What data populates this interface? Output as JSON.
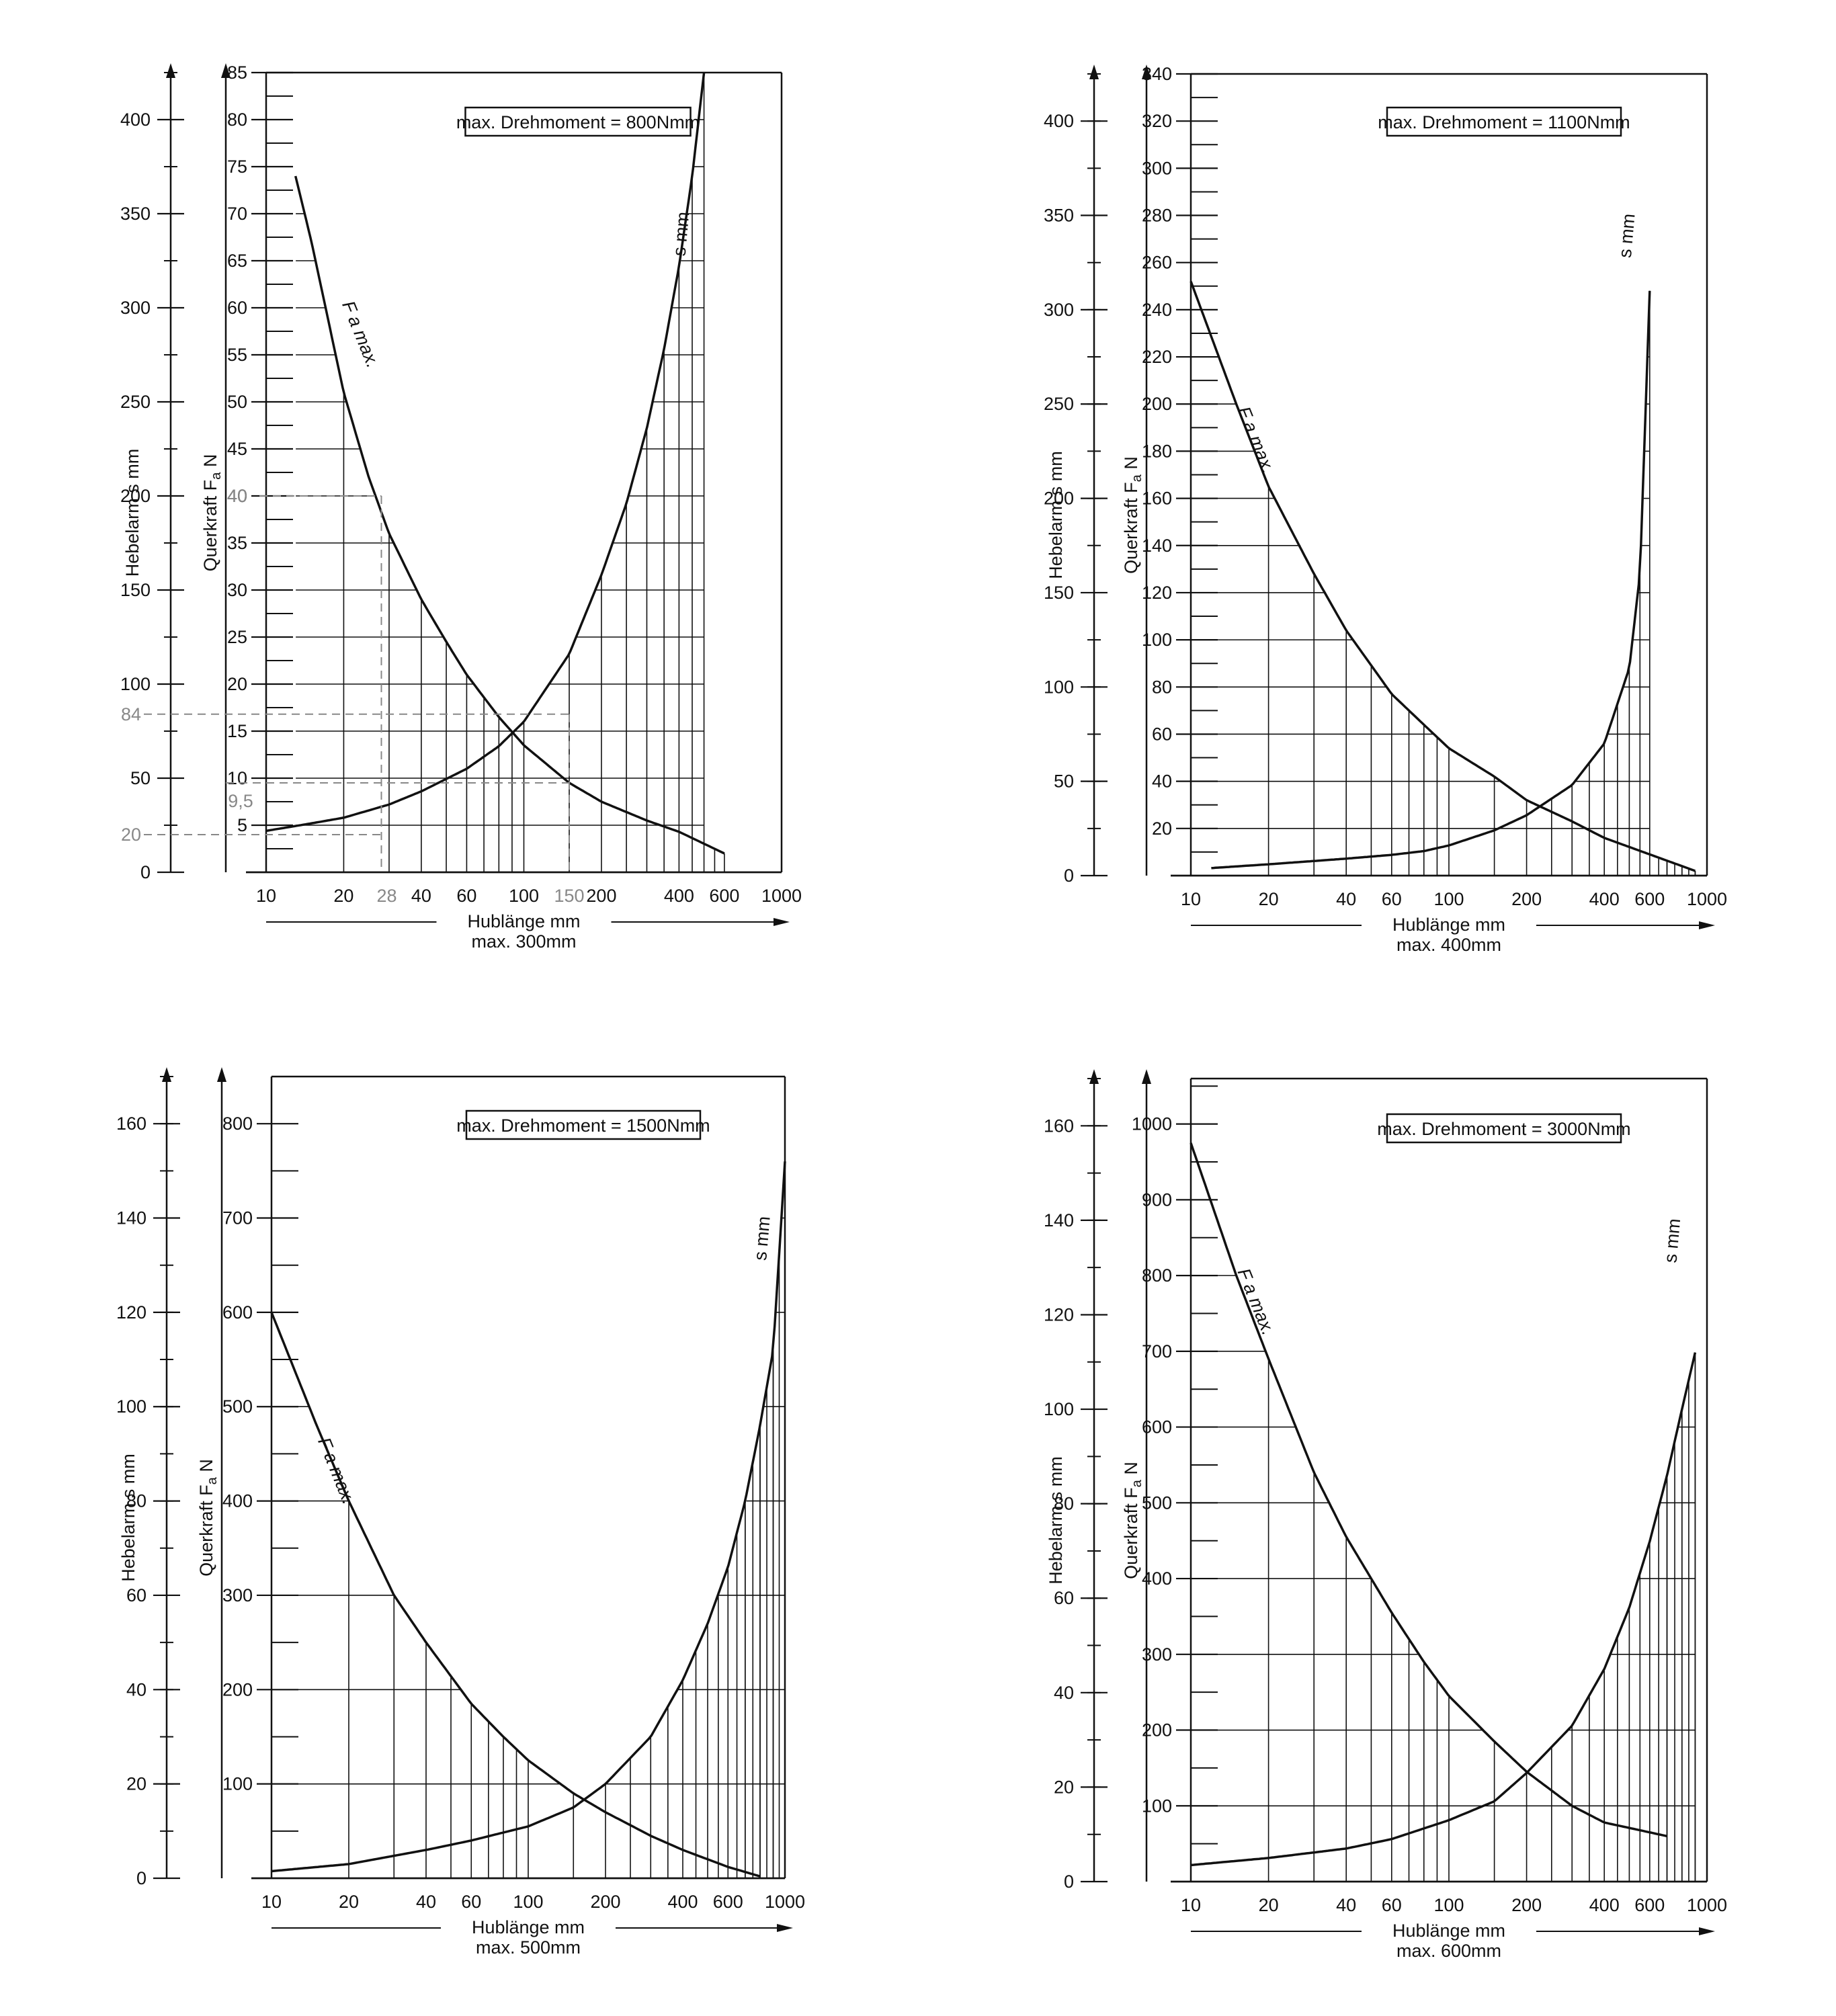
{
  "chart_data": [
    {
      "type": "line",
      "scale": "log-x",
      "title": "",
      "torque_label": "max. Drehmoment = 800Nmm",
      "xlabel": "Hublänge mm",
      "xsublabel": "max. 300mm",
      "y1label": "Hebelarm s mm",
      "y2label_main": "Querkraft F",
      "y2label_sub": "a",
      "y2label_unit": "N",
      "xlim": [
        10,
        1000
      ],
      "x_ticks": [
        10,
        20,
        40,
        60,
        100,
        200,
        400,
        600,
        1000
      ],
      "s_ylim": [
        0,
        425
      ],
      "s_ticks": [
        0,
        50,
        100,
        150,
        200,
        250,
        300,
        350,
        400
      ],
      "f_ylim": [
        0,
        85
      ],
      "f_ticks": [
        5,
        10,
        15,
        20,
        25,
        30,
        35,
        40,
        45,
        50,
        55,
        60,
        65,
        70,
        75,
        80,
        85
      ],
      "series": [
        {
          "name": "F a max.",
          "label": "F a max.",
          "x": [
            13,
            15,
            20,
            25,
            30,
            40,
            50,
            60,
            80,
            100,
            150,
            200,
            300,
            400,
            600
          ],
          "y": [
            74,
            67,
            51,
            42,
            36,
            29,
            24.5,
            21,
            16.5,
            13.5,
            9.5,
            7.5,
            5.5,
            4.3,
            2
          ]
        },
        {
          "name": "s mm",
          "label": "s mm",
          "x": [
            10,
            15,
            20,
            30,
            40,
            60,
            80,
            100,
            150,
            200,
            250,
            300,
            350,
            400,
            450,
            500
          ],
          "y": [
            22,
            26,
            29,
            36,
            43,
            55,
            67,
            80,
            116,
            158,
            196,
            236,
            278,
            322,
            370,
            425
          ]
        }
      ],
      "annotations": [
        {
          "label": "84",
          "value": 84
        },
        {
          "label": "20",
          "value": 20
        },
        {
          "label": "40",
          "value": 40
        },
        {
          "label": "9,5",
          "value": 9.5
        },
        {
          "label": "28",
          "value": 28
        },
        {
          "label": "150",
          "value": 150
        }
      ]
    },
    {
      "type": "line",
      "scale": "log-x",
      "title": "",
      "torque_label": "max. Drehmoment = 1100Nmm",
      "xlabel": "Hublänge mm",
      "xsublabel": "max. 400mm",
      "y1label": "Hebelarm s mm",
      "y2label_main": "Querkraft F",
      "y2label_sub": "a",
      "y2label_unit": "N",
      "xlim": [
        10,
        1000
      ],
      "x_ticks": [
        10,
        20,
        40,
        60,
        100,
        200,
        400,
        600,
        1000
      ],
      "s_ylim": [
        0,
        425
      ],
      "s_ticks": [
        0,
        50,
        100,
        150,
        200,
        250,
        300,
        350,
        400
      ],
      "f_ylim": [
        0,
        340
      ],
      "f_ticks": [
        20,
        40,
        60,
        80,
        100,
        120,
        140,
        160,
        180,
        200,
        220,
        240,
        260,
        280,
        300,
        320,
        340
      ],
      "series": [
        {
          "name": "F a max.",
          "label": "F a max.",
          "x": [
            10,
            15,
            20,
            30,
            40,
            60,
            80,
            100,
            150,
            200,
            300,
            400,
            600,
            900
          ],
          "y": [
            252,
            200,
            165,
            128,
            104,
            77,
            64,
            54,
            42,
            32,
            23,
            16,
            9,
            2
          ]
        },
        {
          "name": "s mm",
          "label": "s mm",
          "x": [
            12,
            20,
            40,
            60,
            80,
            100,
            150,
            200,
            300,
            400,
            500,
            550,
            600
          ],
          "y": [
            4,
            6,
            9,
            11,
            13,
            16,
            24,
            32,
            48,
            70,
            110,
            160,
            310
          ]
        }
      ]
    },
    {
      "type": "line",
      "scale": "log-x",
      "title": "",
      "torque_label": "max. Drehmoment = 1500Nmm",
      "xlabel": "Hublänge mm",
      "xsublabel": "max. 500mm",
      "y1label": "Hebelarm s mm",
      "y2label_main": "Querkraft F",
      "y2label_sub": "a",
      "y2label_unit": "N",
      "xlim": [
        10,
        1000
      ],
      "x_ticks": [
        10,
        20,
        40,
        60,
        100,
        200,
        400,
        600,
        1000
      ],
      "s_ylim": [
        0,
        170
      ],
      "s_ticks": [
        0,
        20,
        40,
        60,
        80,
        100,
        120,
        140,
        160
      ],
      "f_ylim": [
        0,
        850
      ],
      "f_ticks": [
        100,
        200,
        300,
        400,
        500,
        600,
        700,
        800
      ],
      "series": [
        {
          "name": "F a max.",
          "label": "F a max.",
          "x": [
            10,
            15,
            20,
            30,
            40,
            60,
            80,
            100,
            150,
            200,
            300,
            400,
            600,
            800
          ],
          "y": [
            600,
            480,
            400,
            300,
            250,
            185,
            150,
            125,
            90,
            70,
            45,
            30,
            12,
            2
          ]
        },
        {
          "name": "s mm",
          "label": "s mm",
          "x": [
            10,
            20,
            40,
            60,
            100,
            150,
            200,
            300,
            400,
            500,
            600,
            700,
            800,
            900,
            1000
          ],
          "y": [
            1.5,
            3,
            6,
            8,
            11,
            15,
            20,
            30,
            42,
            54,
            66,
            80,
            96,
            112,
            152
          ]
        }
      ]
    },
    {
      "type": "line",
      "scale": "log-x",
      "title": "",
      "torque_label": "max. Drehmoment = 3000Nmm",
      "xlabel": "Hublänge mm",
      "xsublabel": "max. 600mm",
      "y1label": "Hebelarm s mm",
      "y2label_main": "Querkraft F",
      "y2label_sub": "a",
      "y2label_unit": "N",
      "xlim": [
        10,
        1000
      ],
      "x_ticks": [
        10,
        20,
        40,
        60,
        100,
        200,
        400,
        600,
        1000
      ],
      "s_ylim": [
        0,
        170
      ],
      "s_ticks": [
        0,
        20,
        40,
        60,
        80,
        100,
        120,
        140,
        160
      ],
      "f_ylim": [
        0,
        1060
      ],
      "f_ticks": [
        100,
        200,
        300,
        400,
        500,
        600,
        700,
        800,
        900,
        1000
      ],
      "series": [
        {
          "name": "F a max.",
          "label": "F a max.",
          "x": [
            10,
            15,
            20,
            30,
            40,
            60,
            80,
            100,
            150,
            200,
            300,
            400,
            600,
            700
          ],
          "y": [
            975,
            800,
            690,
            540,
            455,
            355,
            290,
            245,
            185,
            145,
            100,
            78,
            65,
            60
          ]
        },
        {
          "name": "s mm",
          "label": "s mm",
          "x": [
            10,
            20,
            40,
            60,
            100,
            150,
            200,
            300,
            400,
            500,
            600,
            700,
            800,
            900
          ],
          "y": [
            3.5,
            5,
            7,
            9,
            13,
            17,
            23,
            33,
            45,
            58,
            72,
            86,
            100,
            112
          ]
        }
      ]
    }
  ]
}
